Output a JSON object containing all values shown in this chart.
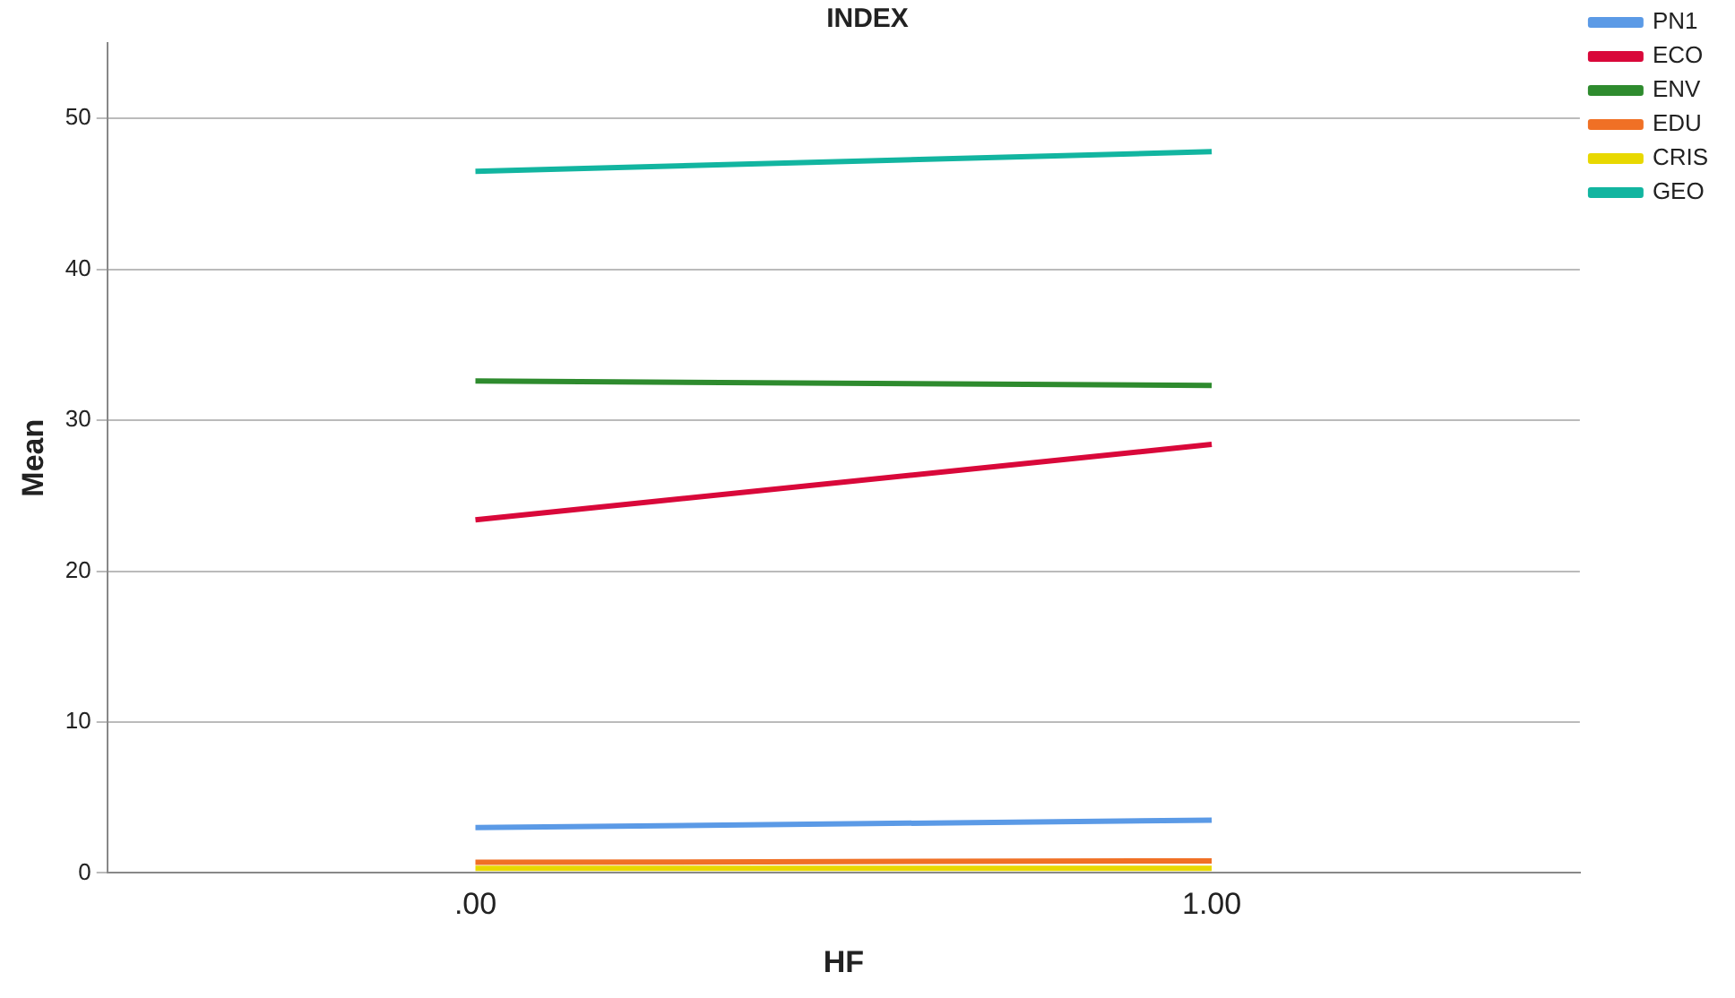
{
  "chart_data": {
    "type": "line",
    "title": "INDEX",
    "xlabel": "HF",
    "ylabel": "Mean",
    "categories": [
      ".00",
      "1.00"
    ],
    "series": [
      {
        "name": "PN1",
        "color": "#5b9ae6",
        "values": [
          3.0,
          3.5
        ]
      },
      {
        "name": "ECO",
        "color": "#d9083a",
        "values": [
          23.4,
          28.4
        ]
      },
      {
        "name": "ENV",
        "color": "#2e8b2e",
        "values": [
          32.6,
          32.3
        ]
      },
      {
        "name": "EDU",
        "color": "#f07025",
        "values": [
          0.7,
          0.8
        ]
      },
      {
        "name": "CRIS",
        "color": "#e8d800",
        "values": [
          0.3,
          0.3
        ]
      },
      {
        "name": "GEO",
        "color": "#12b5a0",
        "values": [
          46.5,
          47.8
        ]
      }
    ],
    "ylim": [
      0,
      55
    ],
    "yticks": [
      0,
      10,
      20,
      30,
      40,
      50
    ],
    "grid": "y",
    "legend": "top right",
    "marker": "none"
  }
}
